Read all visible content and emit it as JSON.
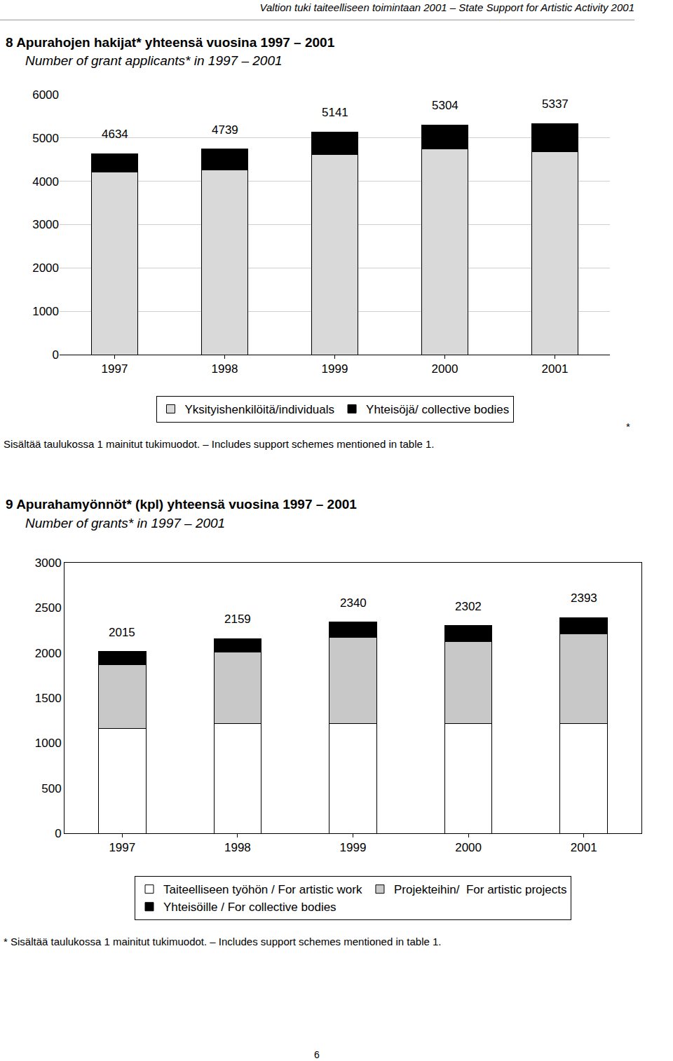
{
  "page": {
    "header": "Valtion tuki taiteelliseen toimintaan 2001 – State Support for Artistic Activity 2001",
    "page_number": "6"
  },
  "chart_data": [
    {
      "type": "bar",
      "title": "8 Apurahojen hakijat* yhteensä vuosina 1997 – 2001",
      "subtitle": "Number of grant applicants* in 1997 – 2001",
      "note": "Sisältää taulukossa 1 mainitut tukimuodot. – Includes support schemes mentioned in table 1.",
      "note_marker": "*",
      "categories": [
        "1997",
        "1998",
        "1999",
        "2000",
        "2001"
      ],
      "series": [
        {
          "name": "Yksityishenkilöitä/individuals",
          "color": "#d9d9d9",
          "values": [
            4210,
            4258,
            4613,
            4742,
            4677
          ]
        },
        {
          "name": "Yhteisöjä/ collective bodies",
          "color": "#000000",
          "values": [
            424,
            481,
            528,
            562,
            660
          ]
        }
      ],
      "totals": [
        4634,
        4739,
        5141,
        5304,
        5337
      ],
      "ylim": [
        0,
        6000
      ],
      "yticks": [
        0,
        1000,
        2000,
        3000,
        4000,
        5000,
        6000
      ],
      "grid": true,
      "stacked": true,
      "legend": "bottom"
    },
    {
      "type": "bar",
      "title": "9 Apurahamyönnöt* (kpl) yhteensä vuosina 1997 – 2001",
      "subtitle": "Number of grants* in 1997 – 2001",
      "note": "* Sisältää taulukossa 1 mainitut tukimuodot. – Includes support schemes mentioned in table 1.",
      "categories": [
        "1997",
        "1998",
        "1999",
        "2000",
        "2001"
      ],
      "series": [
        {
          "name": "Taiteelliseen työhön / For artistic work",
          "color": "#ffffff",
          "values": [
            1164,
            1219,
            1219,
            1219,
            1219
          ]
        },
        {
          "name": "Projekteihin/  For artistic projects",
          "color": "#c8c8c8",
          "values": [
            703,
            789,
            953,
            906,
            992
          ]
        },
        {
          "name": "Yhteisöille / For collective bodies",
          "color": "#000000",
          "values": [
            148,
            151,
            168,
            177,
            182
          ]
        }
      ],
      "totals": [
        2015,
        2159,
        2340,
        2302,
        2393
      ],
      "ylim": [
        0,
        3000
      ],
      "yticks": [
        0,
        500,
        1000,
        1500,
        2000,
        2500,
        3000
      ],
      "grid": false,
      "stacked": true,
      "legend": "bottom"
    }
  ]
}
